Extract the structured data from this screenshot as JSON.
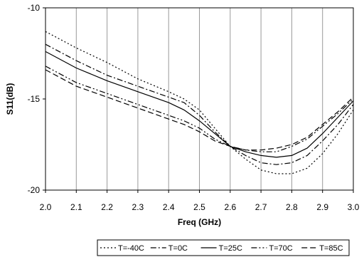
{
  "chart_data": {
    "type": "line",
    "title": "",
    "xlabel": "Freq (GHz)",
    "ylabel": "S11(dB)",
    "xlim": [
      2.0,
      3.0
    ],
    "ylim": [
      -20,
      -10
    ],
    "xticks": [
      "2.0",
      "2.1",
      "2.2",
      "2.3",
      "2.4",
      "2.5",
      "2.6",
      "2.7",
      "2.8",
      "2.9",
      "3.0"
    ],
    "yticks": [
      "-10",
      "-15",
      "-20"
    ],
    "grid": "vertical",
    "legend_position": "bottom",
    "series": [
      {
        "name": "T=-40C",
        "dash": "2,3",
        "x": [
          2.0,
          2.1,
          2.2,
          2.3,
          2.4,
          2.45,
          2.5,
          2.55,
          2.6,
          2.65,
          2.7,
          2.75,
          2.8,
          2.85,
          2.9,
          2.95,
          3.0
        ],
        "y": [
          -11.3,
          -12.2,
          -13.0,
          -13.9,
          -14.6,
          -15.0,
          -15.6,
          -16.6,
          -17.6,
          -18.3,
          -18.9,
          -19.1,
          -19.1,
          -18.8,
          -18.0,
          -16.9,
          -15.6
        ]
      },
      {
        "name": "T=0C",
        "dash": "8,3,2,3",
        "x": [
          2.0,
          2.1,
          2.2,
          2.3,
          2.4,
          2.45,
          2.5,
          2.55,
          2.6,
          2.65,
          2.7,
          2.75,
          2.8,
          2.85,
          2.9,
          2.95,
          3.0
        ],
        "y": [
          -12.0,
          -12.9,
          -13.7,
          -14.3,
          -14.9,
          -15.2,
          -15.9,
          -16.8,
          -17.6,
          -18.1,
          -18.5,
          -18.6,
          -18.5,
          -18.1,
          -17.3,
          -16.4,
          -15.3
        ]
      },
      {
        "name": "T=25C",
        "dash": "",
        "x": [
          2.0,
          2.1,
          2.2,
          2.3,
          2.4,
          2.45,
          2.5,
          2.55,
          2.6,
          2.65,
          2.7,
          2.75,
          2.8,
          2.85,
          2.9,
          2.95,
          3.0
        ],
        "y": [
          -12.4,
          -13.3,
          -14.0,
          -14.6,
          -15.2,
          -15.6,
          -16.2,
          -16.9,
          -17.6,
          -17.9,
          -18.1,
          -18.2,
          -18.1,
          -17.7,
          -16.9,
          -16.0,
          -15.1
        ]
      },
      {
        "name": "T=70C",
        "dash": "8,3,2,3,2,3",
        "x": [
          2.0,
          2.1,
          2.2,
          2.3,
          2.4,
          2.45,
          2.5,
          2.55,
          2.6,
          2.65,
          2.7,
          2.75,
          2.8,
          2.85,
          2.9,
          2.95,
          3.0
        ],
        "y": [
          -13.2,
          -14.1,
          -14.7,
          -15.3,
          -15.9,
          -16.2,
          -16.6,
          -17.2,
          -17.6,
          -17.8,
          -17.9,
          -17.9,
          -17.6,
          -17.2,
          -16.5,
          -15.8,
          -15.0
        ]
      },
      {
        "name": "T=85C",
        "dash": "8,4",
        "x": [
          2.0,
          2.1,
          2.2,
          2.3,
          2.4,
          2.45,
          2.5,
          2.55,
          2.6,
          2.65,
          2.7,
          2.75,
          2.8,
          2.85,
          2.9,
          2.95,
          3.0
        ],
        "y": [
          -13.4,
          -14.3,
          -14.9,
          -15.5,
          -16.1,
          -16.4,
          -16.8,
          -17.3,
          -17.6,
          -17.8,
          -17.8,
          -17.7,
          -17.5,
          -17.1,
          -16.4,
          -15.7,
          -14.9
        ]
      }
    ]
  }
}
